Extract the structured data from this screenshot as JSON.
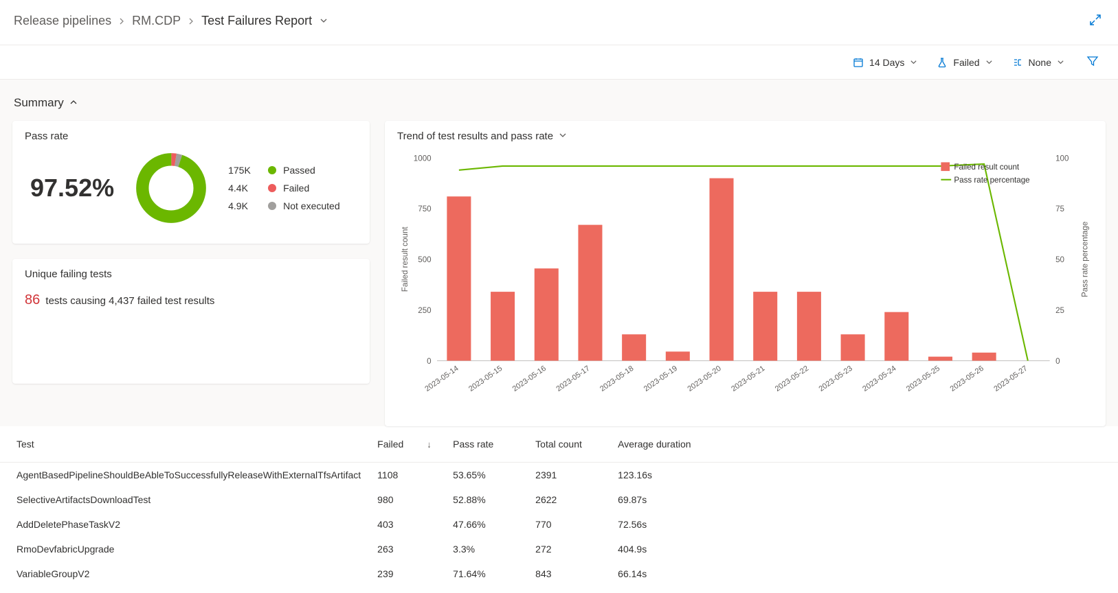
{
  "breadcrumb": {
    "root": "Release pipelines",
    "mid": "RM.CDP",
    "current": "Test Failures Report"
  },
  "filters": {
    "range": "14 Days",
    "outcome": "Failed",
    "group": "None"
  },
  "summary_label": "Summary",
  "passrate": {
    "title": "Pass rate",
    "value": "97.52%",
    "passed_count": "175K",
    "failed_count": "4.4K",
    "notexec_count": "4.9K",
    "passed_label": "Passed",
    "failed_label": "Failed",
    "notexec_label": "Not executed",
    "colors": {
      "passed": "#6bb700",
      "failed": "#ed5c5c",
      "notexec": "#a19f9d"
    },
    "donut": {
      "passed": 175000,
      "failed": 4400,
      "notexec": 4900
    }
  },
  "uft": {
    "title": "Unique failing tests",
    "count": "86",
    "tail": "tests causing 4,437 failed test results"
  },
  "trend": {
    "title": "Trend of test results and pass rate",
    "y_left_label": "Failed result count",
    "y_right_label": "Pass rate percentage",
    "legend_bar": "Failed result count",
    "legend_line": "Pass rate percentage",
    "y_left": {
      "min": 0,
      "max": 1000,
      "ticks": [
        0,
        250,
        500,
        750,
        1000
      ]
    },
    "y_right": {
      "min": 0,
      "max": 100,
      "ticks": [
        0,
        25,
        50,
        75,
        100
      ]
    },
    "bar_color": "#ed6a5e",
    "line_color": "#6bb700",
    "dates": [
      "2023-05-14",
      "2023-05-15",
      "2023-05-16",
      "2023-05-17",
      "2023-05-18",
      "2023-05-19",
      "2023-05-20",
      "2023-05-21",
      "2023-05-22",
      "2023-05-23",
      "2023-05-24",
      "2023-05-25",
      "2023-05-26",
      "2023-05-27"
    ],
    "failed": [
      810,
      340,
      455,
      670,
      130,
      45,
      900,
      340,
      340,
      130,
      240,
      20,
      40,
      0
    ],
    "passrate": [
      94,
      96,
      96,
      96,
      96,
      96,
      96,
      96,
      96,
      96,
      96,
      96,
      97,
      0
    ]
  },
  "table": {
    "columns": {
      "test": "Test",
      "failed": "Failed",
      "pass": "Pass rate",
      "total": "Total count",
      "avg": "Average duration"
    },
    "rows": [
      {
        "test": "AgentBasedPipelineShouldBeAbleToSuccessfullyReleaseWithExternalTfsArtifact",
        "failed": "1108",
        "pass": "53.65%",
        "total": "2391",
        "avg": "123.16s"
      },
      {
        "test": "SelectiveArtifactsDownloadTest",
        "failed": "980",
        "pass": "52.88%",
        "total": "2622",
        "avg": "69.87s"
      },
      {
        "test": "AddDeletePhaseTaskV2",
        "failed": "403",
        "pass": "47.66%",
        "total": "770",
        "avg": "72.56s"
      },
      {
        "test": "RmoDevfabricUpgrade",
        "failed": "263",
        "pass": "3.3%",
        "total": "272",
        "avg": "404.9s"
      },
      {
        "test": "VariableGroupV2",
        "failed": "239",
        "pass": "71.64%",
        "total": "843",
        "avg": "66.14s"
      }
    ]
  }
}
